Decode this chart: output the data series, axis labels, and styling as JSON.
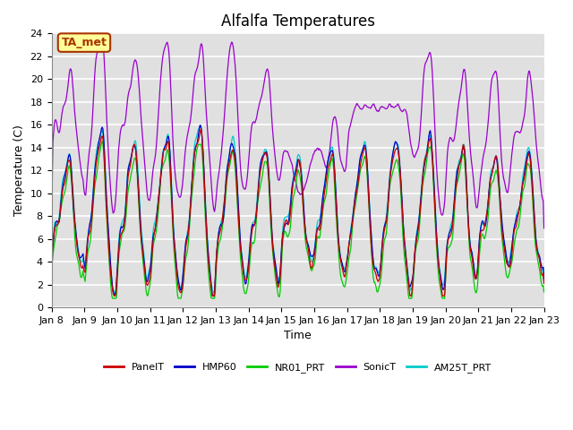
{
  "title": "Alfalfa Temperatures",
  "xlabel": "Time",
  "ylabel": "Temperature (C)",
  "ylim": [
    0,
    24
  ],
  "yticks": [
    0,
    2,
    4,
    6,
    8,
    10,
    12,
    14,
    16,
    18,
    20,
    22,
    24
  ],
  "xtick_labels": [
    "Jan 8",
    "Jan 9",
    "Jan 10",
    "Jan 11",
    "Jan 12",
    "Jan 13",
    "Jan 14",
    "Jan 15",
    "Jan 16",
    "Jan 17",
    "Jan 18",
    "Jan 19",
    "Jan 20",
    "Jan 21",
    "Jan 22",
    "Jan 23"
  ],
  "annotation_text": "TA_met",
  "annotation_bg": "#ffff99",
  "annotation_border": "#aa3300",
  "line_colors": {
    "PanelT": "#cc0000",
    "HMP60": "#0000cc",
    "NR01_PRT": "#00cc00",
    "SonicT": "#9900cc",
    "AM25T_PRT": "#00cccc"
  },
  "legend_labels": [
    "PanelT",
    "HMP60",
    "NR01_PRT",
    "SonicT",
    "AM25T_PRT"
  ],
  "bg_color": "#e0e0e0",
  "title_fontsize": 12,
  "axis_label_fontsize": 9,
  "tick_fontsize": 8
}
